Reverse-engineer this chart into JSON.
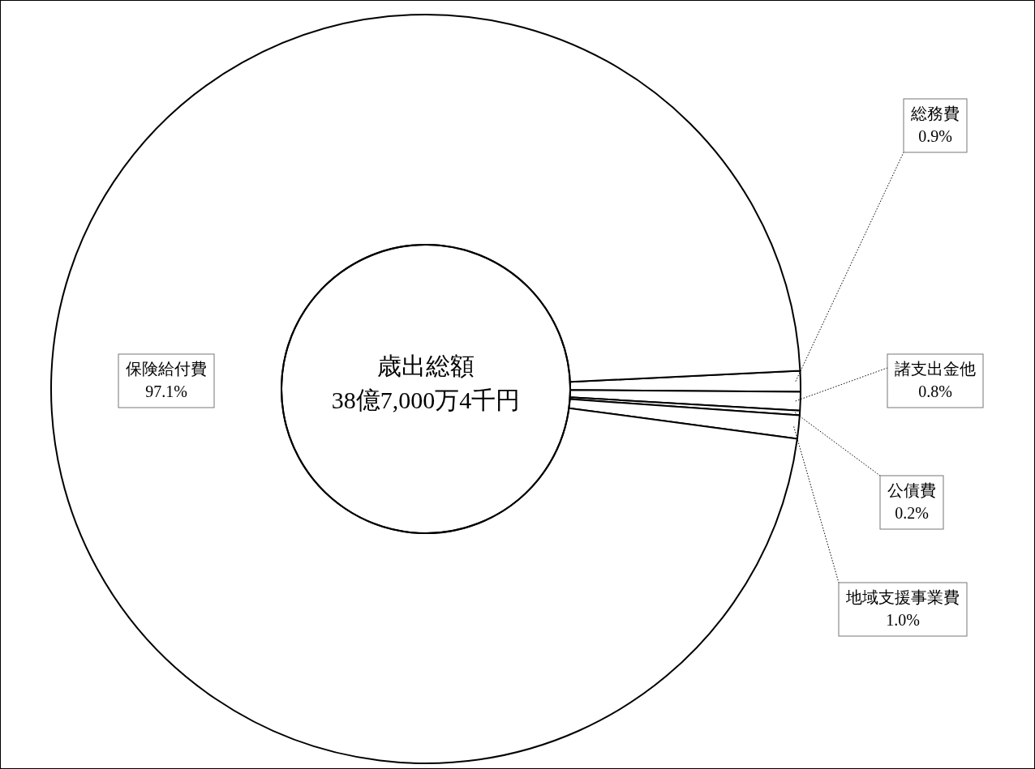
{
  "chart_data": {
    "type": "donut",
    "title": "歳出総額",
    "subtitle": "38億7,000万4千円",
    "categories": [
      "総務費",
      "諸支出金他",
      "公債費",
      "地域支援事業費",
      "保険給付費"
    ],
    "values": [
      0.9,
      0.8,
      0.2,
      1.0,
      97.1
    ],
    "value_labels": [
      "0.9%",
      "0.8%",
      "0.2%",
      "1.0%",
      "97.1%"
    ],
    "colors": [
      "#ffffff",
      "#ffffff",
      "#ffffff",
      "#ffffff",
      "#ffffff"
    ]
  }
}
